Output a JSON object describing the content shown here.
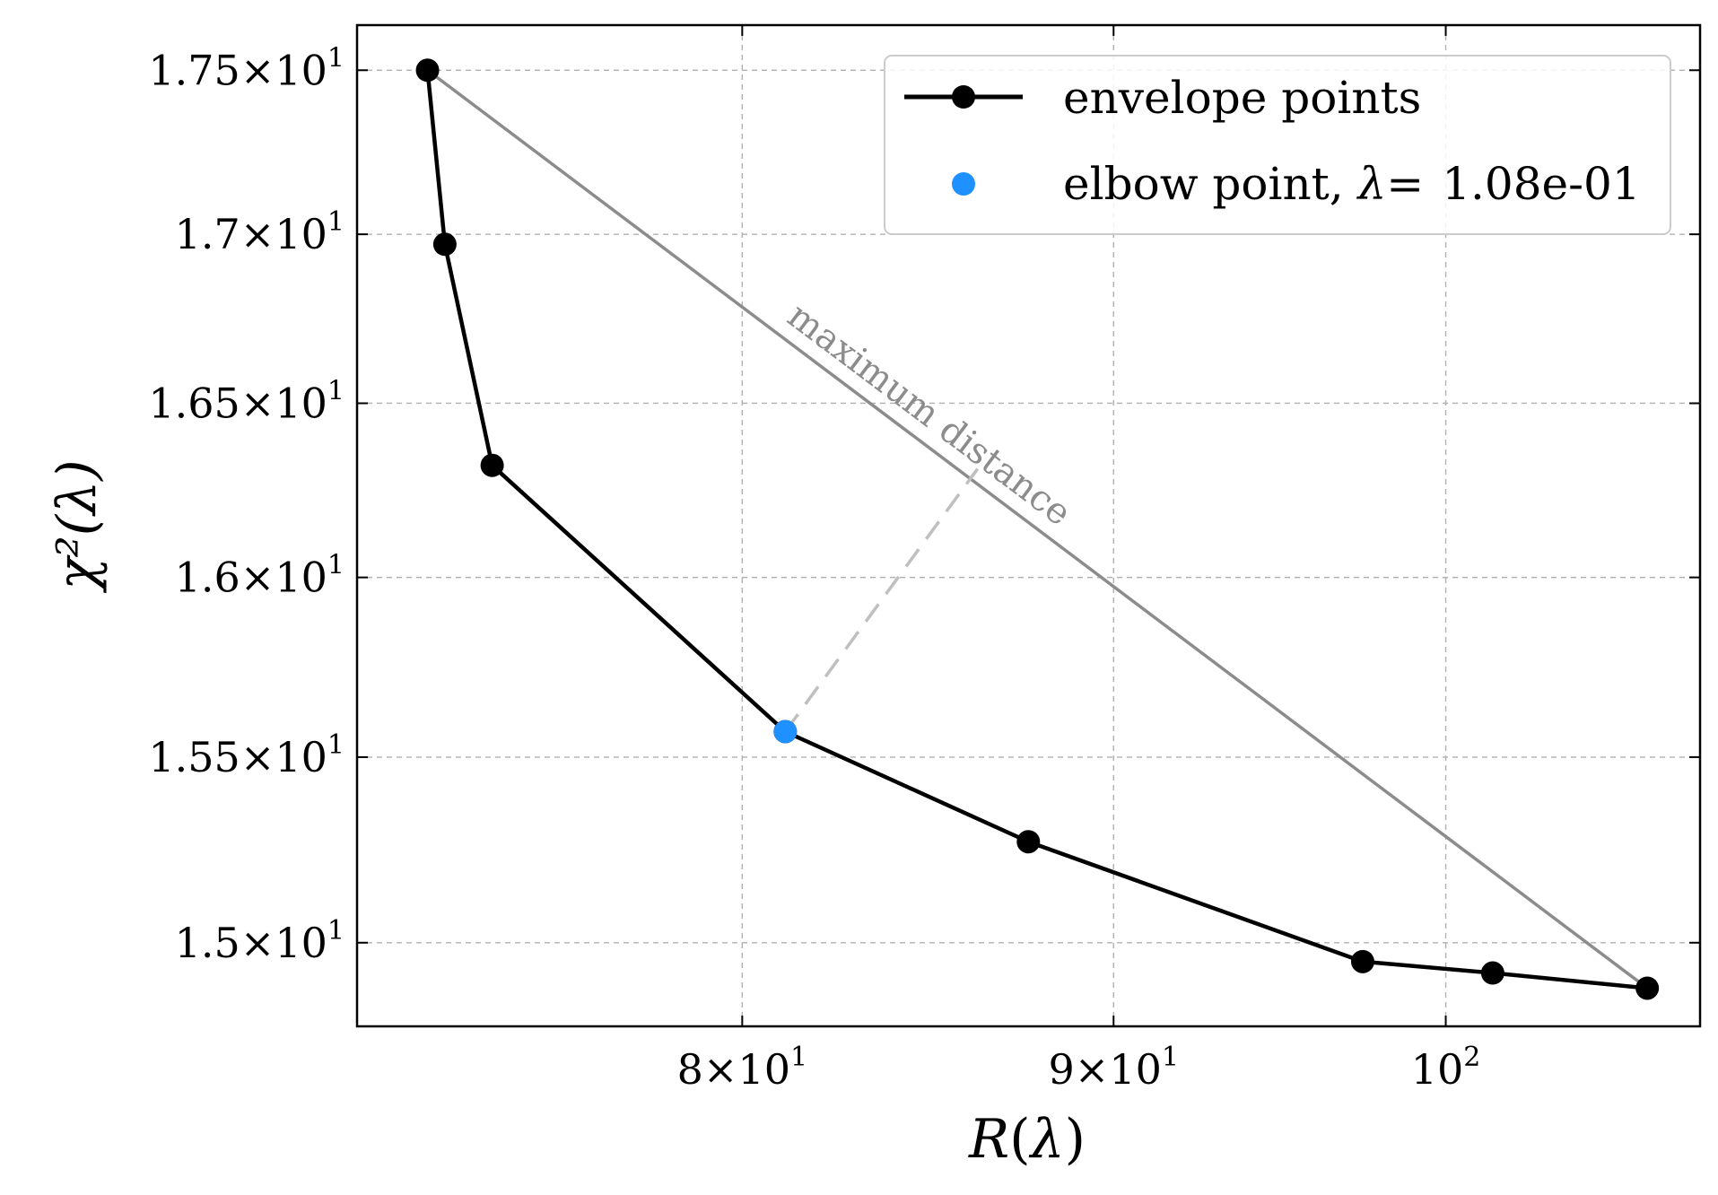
{
  "chart_data": {
    "type": "line",
    "xscale": "log",
    "yscale": "log",
    "xlabel": "R(λ)",
    "ylabel": "χ²(λ)",
    "xlim": [
      70.8,
      108.4
    ],
    "ylim": [
      14.78,
      17.64
    ],
    "grid": true,
    "x_ticks": [
      {
        "value": 80,
        "mantissa": "8",
        "base": "10",
        "exp": "1"
      },
      {
        "value": 90,
        "mantissa": "9",
        "base": "10",
        "exp": "1"
      },
      {
        "value": 100,
        "mantissa": "",
        "base": "10",
        "exp": "2"
      }
    ],
    "y_ticks": [
      {
        "value": 15.0,
        "mantissa": "1.5",
        "base": "10",
        "exp": "1"
      },
      {
        "value": 15.5,
        "mantissa": "1.55",
        "base": "10",
        "exp": "1"
      },
      {
        "value": 16.0,
        "mantissa": "1.6",
        "base": "10",
        "exp": "1"
      },
      {
        "value": 16.5,
        "mantissa": "1.65",
        "base": "10",
        "exp": "1"
      },
      {
        "value": 17.0,
        "mantissa": "1.7",
        "base": "10",
        "exp": "1"
      },
      {
        "value": 17.5,
        "mantissa": "1.75",
        "base": "10",
        "exp": "1"
      }
    ],
    "series": [
      {
        "name": "envelope points",
        "color": "#000000",
        "x": [
          72.4,
          72.8,
          73.9,
          81.1,
          87.6,
          97.4,
          101.5,
          106.6
        ],
        "y": [
          17.5,
          16.97,
          16.32,
          15.57,
          15.27,
          14.95,
          14.92,
          14.88
        ]
      }
    ],
    "elbow_point": {
      "x": 81.1,
      "y": 15.57,
      "color": "#1e90ff",
      "label_prefix": "elbow point, ",
      "lambda_symbol": "λ",
      "equals": "=",
      "lambda_value": "1.08e-01"
    },
    "chord": {
      "from": [
        72.4,
        17.5
      ],
      "to": [
        106.6,
        14.88
      ],
      "color": "#8c8c8c"
    },
    "max_distance_foot": {
      "x": 86.2,
      "y": 16.31
    },
    "annotation": {
      "text": "maximum distance",
      "x": 84.7,
      "y": 16.44,
      "color": "#8c8c8c"
    },
    "legend_position": "top-right"
  }
}
